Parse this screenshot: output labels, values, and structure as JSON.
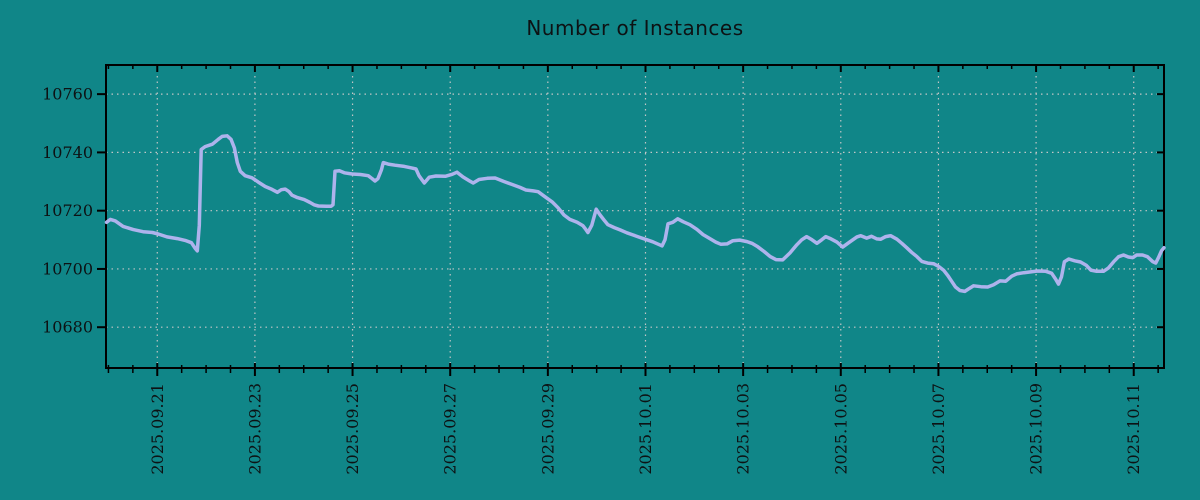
{
  "chart_data": {
    "type": "line",
    "title": "Number of Instances",
    "x_unit_note": "x = days elapsed since 2025.09.20 00:00",
    "x_range": [
      -0.05,
      21.62
    ],
    "y_range": [
      10666,
      10770
    ],
    "x_major_ticks": [
      [
        1,
        "2025.09.21"
      ],
      [
        3,
        "2025.09.23"
      ],
      [
        5,
        "2025.09.25"
      ],
      [
        7,
        "2025.09.27"
      ],
      [
        9,
        "2025.09.29"
      ],
      [
        11,
        "2025.10.01"
      ],
      [
        13,
        "2025.10.03"
      ],
      [
        15,
        "2025.10.05"
      ],
      [
        17,
        "2025.10.07"
      ],
      [
        19,
        "2025.10.09"
      ],
      [
        21,
        "2025.10.11"
      ]
    ],
    "x_minor_step": 0.5,
    "y_ticks": [
      10680,
      10700,
      10720,
      10740,
      10760
    ],
    "grid": "dotted gridlines at major ticks only",
    "legend": "none",
    "series": [
      {
        "name": "instances",
        "points": [
          [
            -0.04,
            10716
          ],
          [
            0.04,
            10717
          ],
          [
            0.14,
            10716.5
          ],
          [
            0.3,
            10714.6
          ],
          [
            0.51,
            10713.5
          ],
          [
            0.71,
            10712.8
          ],
          [
            0.9,
            10712.5
          ],
          [
            1.02,
            10712
          ],
          [
            1.2,
            10711
          ],
          [
            1.41,
            10710.4
          ],
          [
            1.57,
            10709.8
          ],
          [
            1.7,
            10709
          ],
          [
            1.78,
            10707
          ],
          [
            1.82,
            10706.2
          ],
          [
            1.86,
            10715
          ],
          [
            1.9,
            10741
          ],
          [
            1.98,
            10742
          ],
          [
            2.13,
            10742.8
          ],
          [
            2.25,
            10744.5
          ],
          [
            2.33,
            10745.5
          ],
          [
            2.43,
            10745.7
          ],
          [
            2.51,
            10744.5
          ],
          [
            2.58,
            10741.5
          ],
          [
            2.64,
            10736.5
          ],
          [
            2.7,
            10733.5
          ],
          [
            2.8,
            10732
          ],
          [
            2.94,
            10731.3
          ],
          [
            3.07,
            10729.8
          ],
          [
            3.21,
            10728.3
          ],
          [
            3.35,
            10727.3
          ],
          [
            3.46,
            10726.3
          ],
          [
            3.54,
            10727.2
          ],
          [
            3.62,
            10727.4
          ],
          [
            3.7,
            10726.5
          ],
          [
            3.76,
            10725.3
          ],
          [
            3.87,
            10724.5
          ],
          [
            4.01,
            10723.8
          ],
          [
            4.13,
            10722.8
          ],
          [
            4.21,
            10722
          ],
          [
            4.3,
            10721.6
          ],
          [
            4.46,
            10721.5
          ],
          [
            4.56,
            10721.5
          ],
          [
            4.6,
            10722
          ],
          [
            4.64,
            10733.5
          ],
          [
            4.73,
            10733.7
          ],
          [
            4.83,
            10733
          ],
          [
            4.99,
            10732.6
          ],
          [
            5.16,
            10732.4
          ],
          [
            5.32,
            10732
          ],
          [
            5.4,
            10731
          ],
          [
            5.46,
            10730.2
          ],
          [
            5.52,
            10731
          ],
          [
            5.59,
            10734
          ],
          [
            5.63,
            10736.5
          ],
          [
            5.73,
            10736
          ],
          [
            5.87,
            10735.6
          ],
          [
            6.06,
            10735.2
          ],
          [
            6.22,
            10734.6
          ],
          [
            6.3,
            10734.3
          ],
          [
            6.36,
            10732
          ],
          [
            6.47,
            10729.5
          ],
          [
            6.57,
            10731.5
          ],
          [
            6.71,
            10731.9
          ],
          [
            6.9,
            10731.8
          ],
          [
            7.04,
            10732.5
          ],
          [
            7.14,
            10733.2
          ],
          [
            7.26,
            10731.6
          ],
          [
            7.39,
            10730.3
          ],
          [
            7.47,
            10729.5
          ],
          [
            7.59,
            10730.7
          ],
          [
            7.76,
            10731.1
          ],
          [
            7.92,
            10731.2
          ],
          [
            8.1,
            10730
          ],
          [
            8.27,
            10729
          ],
          [
            8.43,
            10728
          ],
          [
            8.55,
            10727.1
          ],
          [
            8.7,
            10726.8
          ],
          [
            8.8,
            10726.5
          ],
          [
            8.94,
            10724.8
          ],
          [
            9.09,
            10723
          ],
          [
            9.21,
            10721
          ],
          [
            9.33,
            10718.5
          ],
          [
            9.45,
            10717
          ],
          [
            9.6,
            10716
          ],
          [
            9.72,
            10714.8
          ],
          [
            9.78,
            10713.5
          ],
          [
            9.82,
            10712.5
          ],
          [
            9.9,
            10715
          ],
          [
            9.99,
            10720.5
          ],
          [
            10.07,
            10718.5
          ],
          [
            10.15,
            10716.8
          ],
          [
            10.23,
            10715.2
          ],
          [
            10.36,
            10714.2
          ],
          [
            10.48,
            10713.4
          ],
          [
            10.62,
            10712.4
          ],
          [
            10.74,
            10711.7
          ],
          [
            10.89,
            10710.8
          ],
          [
            11.03,
            10710
          ],
          [
            11.15,
            10709.3
          ],
          [
            11.26,
            10708.5
          ],
          [
            11.34,
            10707.9
          ],
          [
            11.4,
            10710
          ],
          [
            11.46,
            10715.5
          ],
          [
            11.56,
            10716
          ],
          [
            11.66,
            10717.2
          ],
          [
            11.77,
            10716.2
          ],
          [
            11.91,
            10715.2
          ],
          [
            12.05,
            10713.6
          ],
          [
            12.18,
            10711.8
          ],
          [
            12.32,
            10710.4
          ],
          [
            12.44,
            10709.2
          ],
          [
            12.54,
            10708.5
          ],
          [
            12.67,
            10708.6
          ],
          [
            12.79,
            10709.7
          ],
          [
            12.93,
            10709.9
          ],
          [
            13.08,
            10709.4
          ],
          [
            13.18,
            10708.8
          ],
          [
            13.3,
            10707.6
          ],
          [
            13.43,
            10706
          ],
          [
            13.55,
            10704.3
          ],
          [
            13.67,
            10703.2
          ],
          [
            13.81,
            10703.1
          ],
          [
            13.96,
            10705.5
          ],
          [
            14.1,
            10708.3
          ],
          [
            14.2,
            10710
          ],
          [
            14.3,
            10711.1
          ],
          [
            14.41,
            10710
          ],
          [
            14.51,
            10708.8
          ],
          [
            14.61,
            10710
          ],
          [
            14.69,
            10711.1
          ],
          [
            14.8,
            10710.3
          ],
          [
            14.92,
            10709.2
          ],
          [
            15.04,
            10707.5
          ],
          [
            15.18,
            10709.2
          ],
          [
            15.33,
            10711
          ],
          [
            15.41,
            10711.4
          ],
          [
            15.53,
            10710.6
          ],
          [
            15.63,
            10711.2
          ],
          [
            15.74,
            10710.3
          ],
          [
            15.82,
            10710.2
          ],
          [
            15.92,
            10711.1
          ],
          [
            16.02,
            10711.4
          ],
          [
            16.15,
            10710.2
          ],
          [
            16.25,
            10708.8
          ],
          [
            16.35,
            10707.3
          ],
          [
            16.45,
            10705.7
          ],
          [
            16.56,
            10704.2
          ],
          [
            16.66,
            10702.6
          ],
          [
            16.78,
            10702
          ],
          [
            16.9,
            10701.8
          ],
          [
            17.01,
            10700.8
          ],
          [
            17.11,
            10699.5
          ],
          [
            17.19,
            10697.8
          ],
          [
            17.27,
            10695.8
          ],
          [
            17.35,
            10693.8
          ],
          [
            17.44,
            10692.6
          ],
          [
            17.54,
            10692.3
          ],
          [
            17.64,
            10693.4
          ],
          [
            17.72,
            10694.2
          ],
          [
            17.87,
            10693.9
          ],
          [
            18.01,
            10693.8
          ],
          [
            18.13,
            10694.6
          ],
          [
            18.26,
            10695.9
          ],
          [
            18.38,
            10695.8
          ],
          [
            18.5,
            10697.5
          ],
          [
            18.6,
            10698.3
          ],
          [
            18.75,
            10698.7
          ],
          [
            18.89,
            10699
          ],
          [
            19.03,
            10699.3
          ],
          [
            19.2,
            10699.2
          ],
          [
            19.32,
            10698.5
          ],
          [
            19.4,
            10696.5
          ],
          [
            19.46,
            10694.8
          ],
          [
            19.52,
            10697.3
          ],
          [
            19.58,
            10702.5
          ],
          [
            19.67,
            10703.4
          ],
          [
            19.79,
            10702.8
          ],
          [
            19.91,
            10702.4
          ],
          [
            20.03,
            10701.2
          ],
          [
            20.12,
            10699.6
          ],
          [
            20.24,
            10699.2
          ],
          [
            20.38,
            10699.2
          ],
          [
            20.48,
            10700.3
          ],
          [
            20.59,
            10702.5
          ],
          [
            20.69,
            10704.2
          ],
          [
            20.79,
            10704.8
          ],
          [
            20.89,
            10704.1
          ],
          [
            20.98,
            10703.9
          ],
          [
            21.06,
            10704.8
          ],
          [
            21.18,
            10704.8
          ],
          [
            21.28,
            10704.2
          ],
          [
            21.39,
            10702.5
          ],
          [
            21.45,
            10702
          ],
          [
            21.51,
            10704
          ],
          [
            21.57,
            10706.3
          ],
          [
            21.62,
            10707.3
          ]
        ]
      }
    ],
    "colors": {
      "background": "#108688",
      "line": "#aeb3ec",
      "grid": "#c2c6c6",
      "axis": "#000000",
      "text": "#0d1214"
    }
  }
}
